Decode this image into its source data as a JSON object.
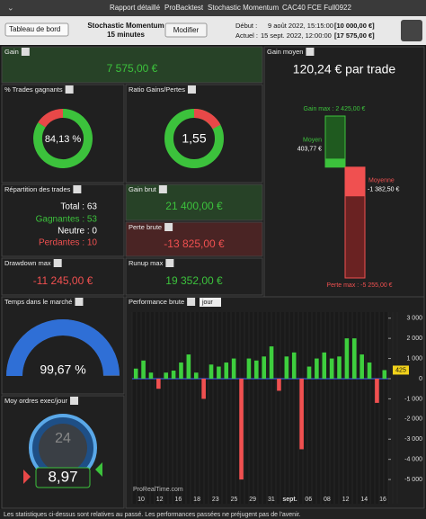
{
  "titlebar": {
    "tabs": [
      "Rapport détaillé",
      "ProBacktest",
      "Stochastic Momentum",
      "CAC40 FCE Full0922"
    ]
  },
  "toolbar": {
    "view": "Tableau de bord",
    "system": "Stochastic Momentum",
    "timeframe": "15 minutes",
    "button": "Modifier",
    "start_label": "Début :",
    "start_date": "9 août 2022, 15:15:00",
    "start_capital": "[10 000,00 €]",
    "current_label": "Actuel :",
    "current_date": "15 sept. 2022, 12:00:00",
    "current_capital": "[17 575,00 €]"
  },
  "gain": {
    "title": "Gain",
    "value": "7 575,00 €"
  },
  "avg_gain": {
    "title": "Gain moyen",
    "value": "120,24 € par trade",
    "max_label": "Gain max : 2 425,00 €",
    "max": 2425,
    "win_label": "Moyen",
    "win_value_label": "403,77 €",
    "win": 403.77,
    "loss_label": "Moyenne",
    "loss_value_label": "-1 382,50 €",
    "loss": -1382.5,
    "min_label": "Perte max : -5 255,00 €",
    "min": -5255
  },
  "win_rate": {
    "title": "% Trades gagnants",
    "value": 84.13,
    "value_label": "84,13 %"
  },
  "ratio": {
    "title": "Ratio Gains/Pertes",
    "value_label": "1,55"
  },
  "distribution": {
    "title": "Répartition des trades",
    "total": "Total : 63",
    "winning": "Gagnantes : 53",
    "neutral": "Neutre : 0",
    "losing": "Perdantes : 10"
  },
  "gross_gain": {
    "title": "Gain brut",
    "value": "21 400,00 €"
  },
  "gross_loss": {
    "title": "Perte brute",
    "value": "-13 825,00 €"
  },
  "drawdown": {
    "title": "Drawdown max",
    "value": "-11 245,00 €"
  },
  "runup": {
    "title": "Runup max",
    "value": "19 352,00 €"
  },
  "time_in_market": {
    "title": "Temps dans le marché",
    "value": 99.67,
    "value_label": "99,67 %"
  },
  "orders": {
    "title": "Moy ordres exec/jour",
    "clock": "24",
    "value": "8,97"
  },
  "performance": {
    "title": "Performance brute",
    "period": "jour",
    "values": [
      500,
      900,
      300,
      -500,
      300,
      400,
      800,
      1200,
      300,
      -1000,
      700,
      600,
      800,
      1000,
      -5000,
      1000,
      900,
      1100,
      1600,
      -600,
      1100,
      1300,
      -3500,
      600,
      1000,
      1300,
      1000,
      1100,
      2000,
      2000,
      1200,
      800,
      -1200,
      425
    ],
    "last_label": "425",
    "ylim": [
      -6200,
      3300
    ],
    "yticks": [
      {
        "value": 3000,
        "label": "3 000"
      },
      {
        "value": 2000,
        "label": "2 000"
      },
      {
        "value": 1000,
        "label": "1 000"
      },
      0,
      {
        "value": -1000,
        "label": "-1 000"
      },
      {
        "value": -2000,
        "label": "-2 000"
      },
      {
        "value": -3000,
        "label": "-3 000"
      },
      {
        "value": -4000,
        "label": "-4 000"
      },
      {
        "value": -5000,
        "label": "-5 000"
      }
    ],
    "x_labels": [
      "10",
      "12",
      "16",
      "18",
      "23",
      "25",
      "29",
      "31",
      "sept.",
      "06",
      "08",
      "12",
      "14",
      "16"
    ],
    "watermark": "ProRealTime.com"
  },
  "footer": "Les statistiques ci-dessus sont relatives au passé. Les performances passées ne préjugent pas de l'avenir."
}
